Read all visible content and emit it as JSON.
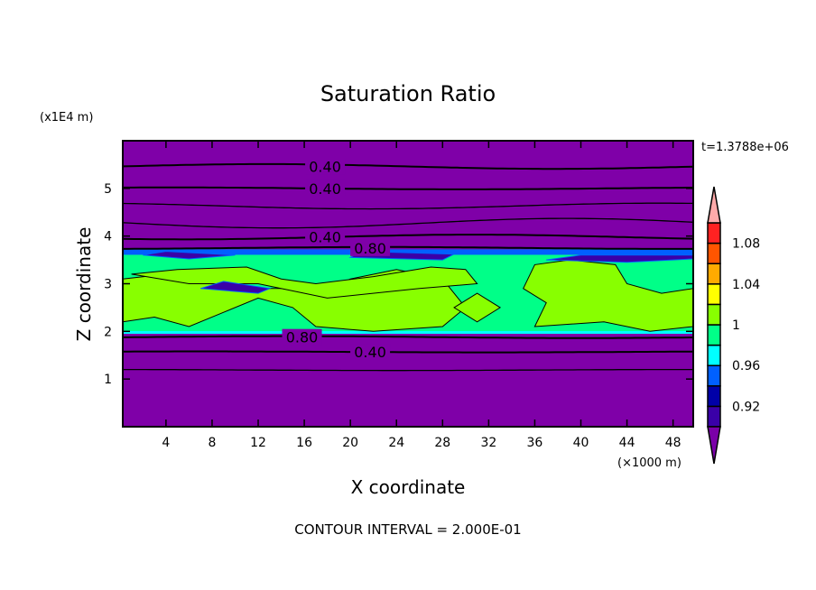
{
  "chart_data": {
    "type": "heatmap",
    "subtype": "filled-contour",
    "title": "Saturation Ratio",
    "xlabel": "X coordinate",
    "ylabel": "Z coordinate",
    "x_unit_label": "(×1000 m)",
    "y_unit_label": "(x1E4 m)",
    "time_label": "t=1.3788e+06",
    "footer": "CONTOUR INTERVAL = 2.000E-01",
    "xlim": [
      0.25,
      49.75
    ],
    "ylim": [
      0,
      6
    ],
    "xticks": [
      4,
      8,
      12,
      16,
      20,
      24,
      28,
      32,
      36,
      40,
      44,
      48
    ],
    "yticks": [
      1,
      2,
      3,
      4,
      5
    ],
    "colorbar": {
      "levels": [
        0.9,
        0.92,
        0.94,
        0.96,
        0.98,
        1.0,
        1.02,
        1.04,
        1.06,
        1.08,
        1.1
      ],
      "tick_labels": [
        {
          "v": 0.92,
          "t": "0.92"
        },
        {
          "v": 0.96,
          "t": "0.96"
        },
        {
          "v": 1.0,
          "t": "1"
        },
        {
          "v": 1.04,
          "t": "1.04"
        },
        {
          "v": 1.08,
          "t": "1.08"
        }
      ],
      "colors": [
        "#3a00a8",
        "#0000a8",
        "#0060ff",
        "#00ffff",
        "#00ff88",
        "#88ff00",
        "#ffff00",
        "#ffaa00",
        "#ff5500",
        "#ff2222"
      ],
      "under_color": "#7a00a8",
      "over_color": "#ffaaaa"
    },
    "background_color": "#7f00a8",
    "cloud_band": {
      "z_bottom": 1.95,
      "z_top": 3.72,
      "fill": "#00ff88"
    },
    "lime_regions": [
      [
        [
          0.25,
          2.2
        ],
        [
          3,
          2.3
        ],
        [
          6,
          2.1
        ],
        [
          9,
          2.4
        ],
        [
          12,
          2.7
        ],
        [
          15,
          2.5
        ],
        [
          17,
          2.1
        ],
        [
          22,
          2.0
        ],
        [
          28,
          2.1
        ],
        [
          30,
          2.5
        ],
        [
          28,
          3.1
        ],
        [
          24,
          3.3
        ],
        [
          20,
          3.1
        ],
        [
          17,
          2.8
        ],
        [
          14,
          2.9
        ],
        [
          10,
          2.9
        ],
        [
          7,
          3.2
        ],
        [
          4,
          3.2
        ],
        [
          0.25,
          3.1
        ]
      ],
      [
        [
          1,
          3.2
        ],
        [
          5,
          3.3
        ],
        [
          11,
          3.35
        ],
        [
          14,
          3.1
        ],
        [
          17,
          3.0
        ],
        [
          22,
          3.15
        ],
        [
          27,
          3.35
        ],
        [
          30,
          3.3
        ],
        [
          31,
          3.0
        ],
        [
          26,
          2.9
        ],
        [
          18,
          2.7
        ],
        [
          12,
          3.0
        ],
        [
          6,
          3.0
        ]
      ],
      [
        [
          36,
          2.1
        ],
        [
          42,
          2.2
        ],
        [
          46,
          2.0
        ],
        [
          49.75,
          2.1
        ],
        [
          49.75,
          2.9
        ],
        [
          47,
          2.8
        ],
        [
          44,
          3.0
        ],
        [
          43,
          3.4
        ],
        [
          39,
          3.5
        ],
        [
          36,
          3.4
        ],
        [
          35,
          2.9
        ],
        [
          37,
          2.6
        ]
      ],
      [
        [
          29,
          2.5
        ],
        [
          31,
          2.2
        ],
        [
          33,
          2.5
        ],
        [
          31,
          2.8
        ]
      ]
    ],
    "dark_patches": [
      [
        [
          7,
          2.9
        ],
        [
          12,
          2.8
        ],
        [
          13,
          2.9
        ],
        [
          9,
          3.05
        ]
      ],
      [
        [
          20,
          3.55
        ],
        [
          28,
          3.5
        ],
        [
          29,
          3.62
        ],
        [
          21,
          3.68
        ]
      ],
      [
        [
          37,
          3.5
        ],
        [
          44,
          3.45
        ],
        [
          49.75,
          3.52
        ],
        [
          49.75,
          3.6
        ],
        [
          40,
          3.6
        ]
      ],
      [
        [
          2,
          3.6
        ],
        [
          6,
          3.52
        ],
        [
          10,
          3.6
        ],
        [
          4,
          3.68
        ]
      ]
    ],
    "contours": [
      {
        "z": 5.46,
        "label": "0.40",
        "lx": 17.8,
        "wave": 0.05
      },
      {
        "z": 5.0,
        "label": "0.40",
        "lx": 17.8,
        "wave": 0.02
      },
      {
        "z": 4.63,
        "label": "",
        "lx": 0,
        "wave": 0.06
      },
      {
        "z": 4.27,
        "label": "",
        "lx": 0,
        "wave": 0.1
      },
      {
        "z": 3.98,
        "label": "0.40",
        "lx": 17.8,
        "wave": 0.05
      },
      {
        "z": 3.75,
        "label": "0.80",
        "lx": 17.8,
        "wave": 0.02
      },
      {
        "z": 1.88,
        "label": "0.80",
        "lx": 15.8,
        "wave": 0.02
      },
      {
        "z": 1.57,
        "label": "0.40",
        "lx": 17.8,
        "wave": 0.01
      },
      {
        "z": 1.19,
        "label": "",
        "lx": 0,
        "wave": 0.01
      }
    ]
  }
}
